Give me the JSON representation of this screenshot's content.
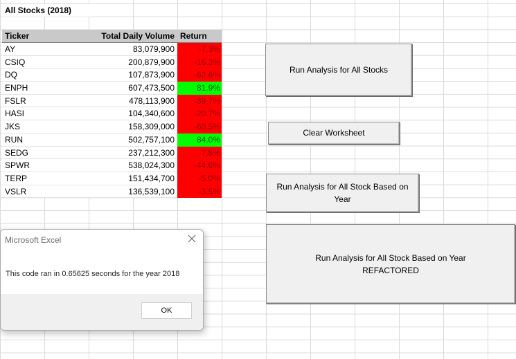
{
  "sheet": {
    "title": "All Stocks (2018)",
    "headers": {
      "ticker": "Ticker",
      "volume": "Total Daily Volume",
      "return": "Return"
    },
    "rows": [
      {
        "ticker": "AY",
        "volume": "83,079,900",
        "return": "-7.3%",
        "positive": false
      },
      {
        "ticker": "CSIQ",
        "volume": "200,879,900",
        "return": "-16.3%",
        "positive": false
      },
      {
        "ticker": "DQ",
        "volume": "107,873,900",
        "return": "-62.6%",
        "positive": false
      },
      {
        "ticker": "ENPH",
        "volume": "607,473,500",
        "return": "81.9%",
        "positive": true
      },
      {
        "ticker": "FSLR",
        "volume": "478,113,900",
        "return": "-39.7%",
        "positive": false
      },
      {
        "ticker": "HASI",
        "volume": "104,340,600",
        "return": "-20.7%",
        "positive": false
      },
      {
        "ticker": "JKS",
        "volume": "158,309,000",
        "return": "-60.5%",
        "positive": false
      },
      {
        "ticker": "RUN",
        "volume": "502,757,100",
        "return": "84.0%",
        "positive": true
      },
      {
        "ticker": "SEDG",
        "volume": "237,212,300",
        "return": "-7.8%",
        "positive": false
      },
      {
        "ticker": "SPWR",
        "volume": "538,024,300",
        "return": "-44.6%",
        "positive": false
      },
      {
        "ticker": "TERP",
        "volume": "151,434,700",
        "return": "-5.0%",
        "positive": false
      },
      {
        "ticker": "VSLR",
        "volume": "136,539,100",
        "return": "-3.5%",
        "positive": false
      }
    ]
  },
  "colors": {
    "positive": "#00ff00",
    "negative": "#ff0000"
  },
  "buttons": {
    "run_all": "Run Analysis for All Stocks",
    "clear": "Clear Worksheet",
    "run_year": "Run Analysis for All Stock Based on Year",
    "run_year_refactored_line1": "Run Analysis for All Stock Based on Year",
    "run_year_refactored_line2": "REFACTORED"
  },
  "dialog": {
    "title": "Microsoft Excel",
    "message": "This code ran in 0.65625 seconds for the year 2018",
    "ok": "OK",
    "close_icon": "close-icon"
  }
}
